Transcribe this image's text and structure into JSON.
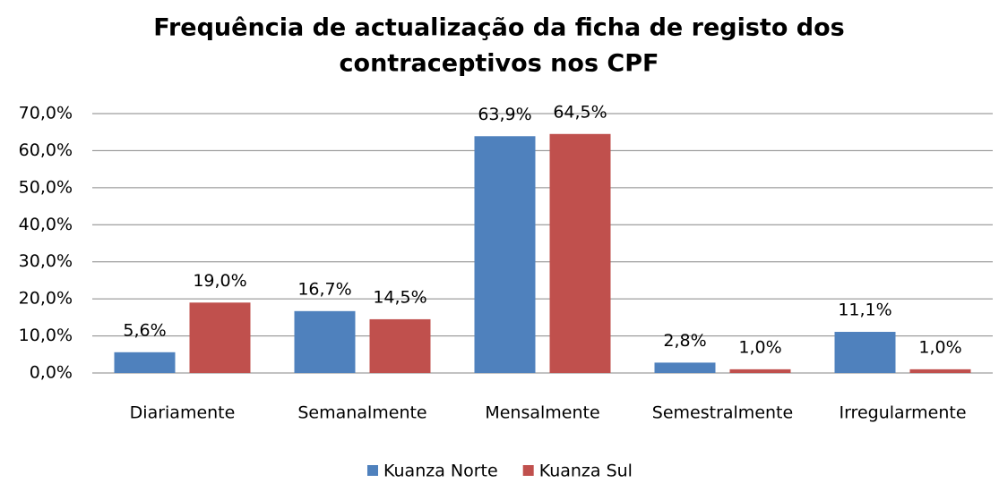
{
  "chart_data": {
    "type": "bar",
    "title": [
      "Frequência de actualização da ficha de registo dos",
      "contraceptivos nos CPF"
    ],
    "categories": [
      "Diariamente",
      "Semanalmente",
      "Mensalmente",
      "Semestralmente",
      "Irregularmente"
    ],
    "series": [
      {
        "name": "Kuanza Norte",
        "color": "#4f81bd",
        "values": [
          5.6,
          16.7,
          63.9,
          2.8,
          11.1
        ],
        "value_labels": [
          "5,6%",
          "16,7%",
          "63,9%",
          "2,8%",
          "11,1%"
        ]
      },
      {
        "name": "Kuanza Sul",
        "color": "#c0504d",
        "values": [
          19.0,
          14.5,
          64.5,
          1.0,
          1.0
        ],
        "value_labels": [
          "19,0%",
          "14,5%",
          "64,5%",
          "1,0%",
          "1,0%"
        ]
      }
    ],
    "ylim": [
      0,
      70
    ],
    "yticks": [
      {
        "value": 0,
        "label": "0,0%"
      },
      {
        "value": 10,
        "label": "10,0%"
      },
      {
        "value": 20,
        "label": "20,0%"
      },
      {
        "value": 30,
        "label": "30,0%"
      },
      {
        "value": 40,
        "label": "40,0%"
      },
      {
        "value": 50,
        "label": "50,0%"
      },
      {
        "value": 60,
        "label": "60,0%"
      },
      {
        "value": 70,
        "label": "70,0%"
      }
    ],
    "grid": true,
    "legend": "bottom"
  }
}
